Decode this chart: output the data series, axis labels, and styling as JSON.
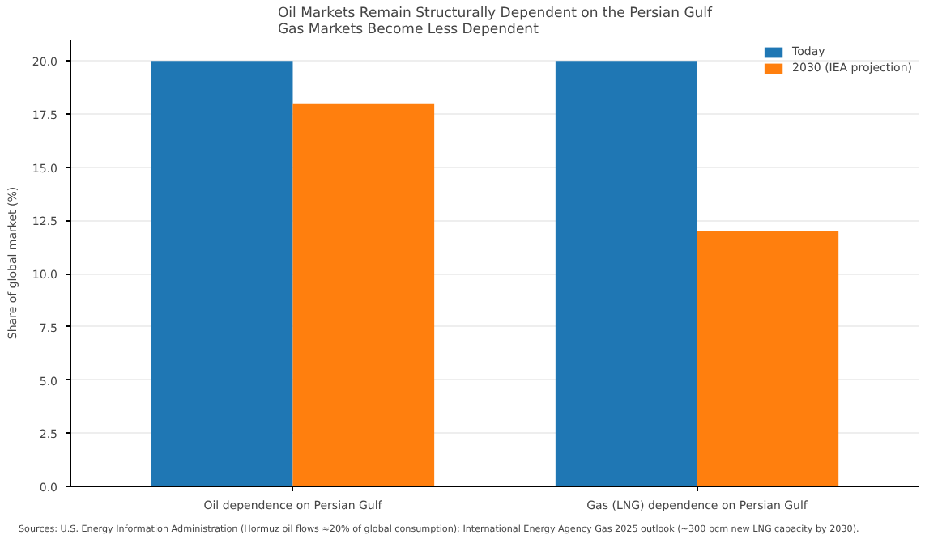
{
  "chart_data": {
    "type": "bar",
    "title": "Oil Markets Remain Structurally Dependent on the Persian Gulf\nGas Markets Become Less Dependent",
    "ylabel": "Share of global market (%)",
    "categories": [
      "Oil dependence on Persian Gulf",
      "Gas (LNG) dependence on Persian Gulf"
    ],
    "series": [
      {
        "name": "Today",
        "color": "#1f77b4",
        "values": [
          20,
          20
        ]
      },
      {
        "name": "2030 (IEA projection)",
        "color": "#ff7f0e",
        "values": [
          18,
          12
        ]
      }
    ],
    "ylim": [
      0,
      21
    ],
    "yticks": [
      {
        "value": 0,
        "label": "0.0"
      },
      {
        "value": 2.5,
        "label": "2.5"
      },
      {
        "value": 5,
        "label": "5.0"
      },
      {
        "value": 7.5,
        "label": "7.5"
      },
      {
        "value": 10,
        "label": "10.0"
      },
      {
        "value": 12.5,
        "label": "12.5"
      },
      {
        "value": 15,
        "label": "15.0"
      },
      {
        "value": 17.5,
        "label": "17.5"
      },
      {
        "value": 20,
        "label": "20.0"
      }
    ],
    "grid": "y",
    "legend": "top right",
    "annotations": [
      "Sources: U.S. Energy Information Administration (Hormuz oil flows ≈20% of global consumption); International Energy Agency Gas 2025 outlook (~300 bcm new LNG capacity by 2030)."
    ]
  }
}
